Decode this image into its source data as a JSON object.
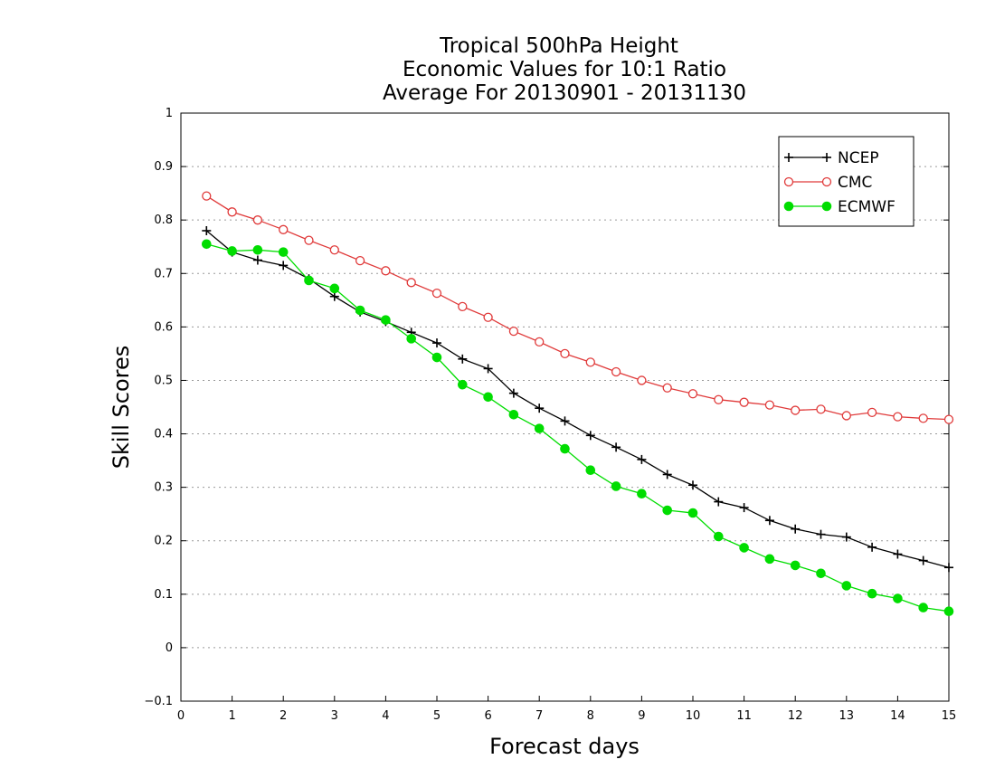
{
  "chart_data": {
    "type": "line",
    "title": [
      "Tropical 500hPa Height",
      "Economic Values for 10:1 Ratio",
      "Average For 20130901 - 20131130"
    ],
    "xlabel": "Forecast days",
    "ylabel": "Skill Scores",
    "xlim": [
      0,
      15
    ],
    "ylim": [
      -0.1,
      1
    ],
    "xticks": [
      "0",
      "1",
      "2",
      "3",
      "4",
      "5",
      "6",
      "7",
      "8",
      "9",
      "10",
      "11",
      "12",
      "13",
      "14",
      "15"
    ],
    "yticks": [
      "−0.1",
      "0",
      "0.1",
      "0.2",
      "0.3",
      "0.4",
      "0.5",
      "0.6",
      "0.7",
      "0.8",
      "0.9",
      "1"
    ],
    "ytick_values": [
      -0.1,
      0,
      0.1,
      0.2,
      0.3,
      0.4,
      0.5,
      0.6,
      0.7,
      0.8,
      0.9,
      1
    ],
    "grid": "horizontal dotted",
    "legend_position": "top-right",
    "x": [
      0.5,
      1,
      1.5,
      2,
      2.5,
      3,
      3.5,
      4,
      4.5,
      5,
      5.5,
      6,
      6.5,
      7,
      7.5,
      8,
      8.5,
      9,
      9.5,
      10,
      10.5,
      11,
      11.5,
      12,
      12.5,
      13,
      13.5,
      14,
      14.5,
      15
    ],
    "series": [
      {
        "name": "NCEP",
        "color": "#000000",
        "marker": "plus",
        "values": [
          0.78,
          0.74,
          0.725,
          0.715,
          0.69,
          0.657,
          0.628,
          0.61,
          0.59,
          0.57,
          0.54,
          0.522,
          0.476,
          0.448,
          0.424,
          0.397,
          0.375,
          0.352,
          0.324,
          0.304,
          0.273,
          0.262,
          0.238,
          0.222,
          0.212,
          0.207,
          0.188,
          0.175,
          0.163,
          0.15
        ]
      },
      {
        "name": "CMC",
        "color": "#e03a3a",
        "marker": "open-circle",
        "values": [
          0.845,
          0.815,
          0.8,
          0.782,
          0.762,
          0.744,
          0.724,
          0.705,
          0.683,
          0.663,
          0.638,
          0.618,
          0.592,
          0.572,
          0.55,
          0.534,
          0.516,
          0.5,
          0.486,
          0.475,
          0.464,
          0.459,
          0.454,
          0.444,
          0.446,
          0.434,
          0.44,
          0.432,
          0.429,
          0.427
        ]
      },
      {
        "name": "ECMWF",
        "color": "#00dd00",
        "marker": "filled-circle",
        "values": [
          0.755,
          0.742,
          0.744,
          0.74,
          0.687,
          0.672,
          0.631,
          0.613,
          0.578,
          0.543,
          0.492,
          0.469,
          0.436,
          0.41,
          0.372,
          0.332,
          0.302,
          0.288,
          0.257,
          0.252,
          0.208,
          0.187,
          0.166,
          0.154,
          0.139,
          0.116,
          0.101,
          0.092,
          0.075,
          0.068
        ]
      }
    ]
  }
}
